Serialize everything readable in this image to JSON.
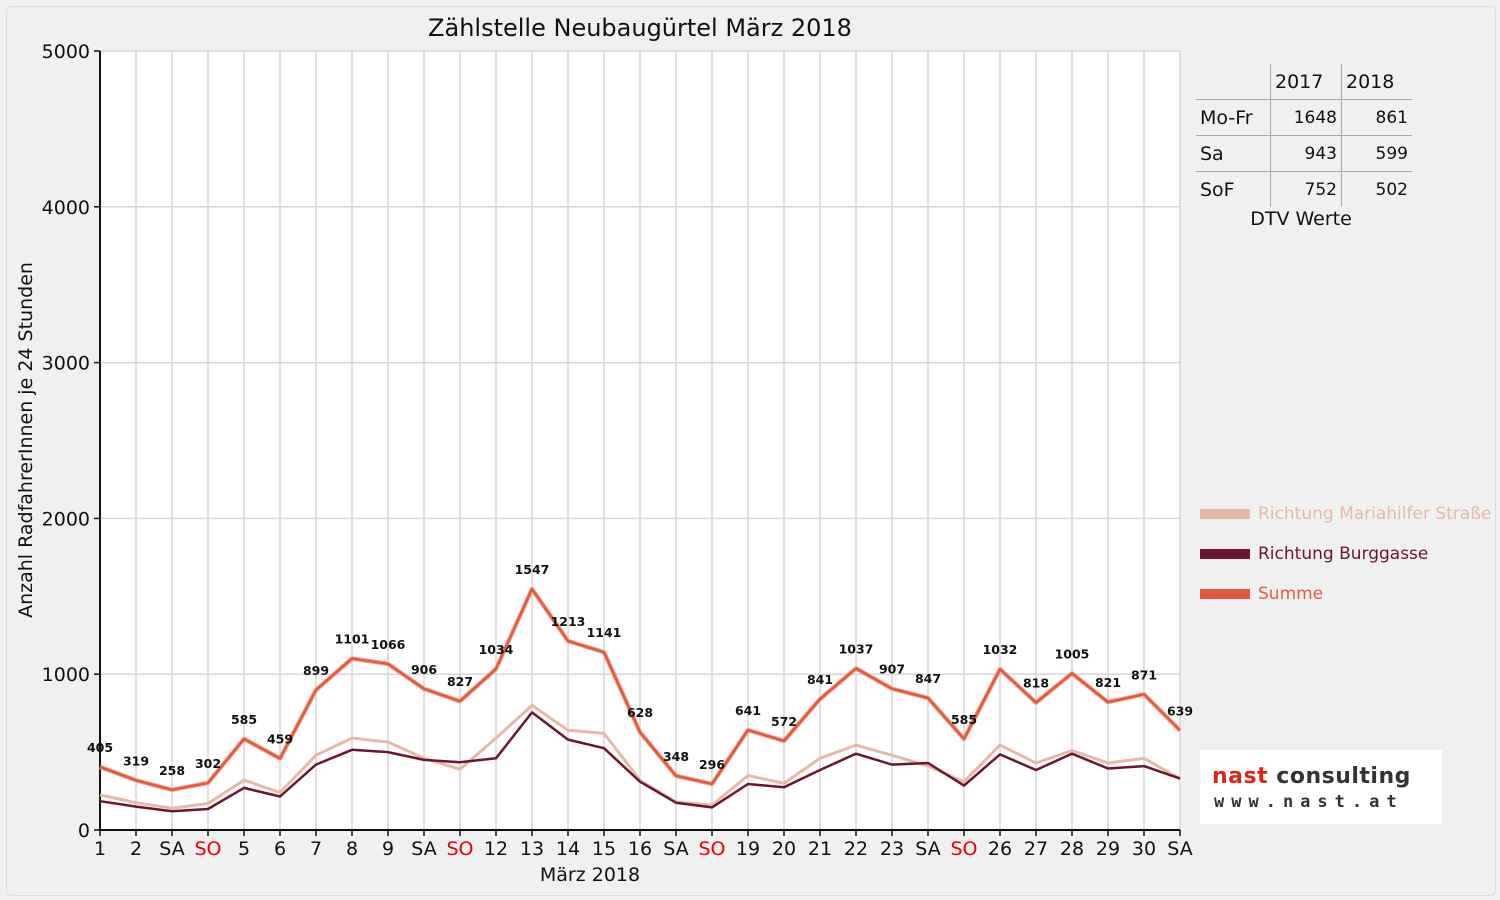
{
  "chart_data": {
    "type": "line",
    "title": "Zählstelle Neubaugürtel März 2018",
    "xlabel": "März 2018",
    "ylabel": "Anzahl RadfahrerInnen je 24 Stunden",
    "ylim": [
      0,
      5000
    ],
    "yticks": [
      0,
      1000,
      2000,
      3000,
      4000,
      5000
    ],
    "grid": true,
    "categories": [
      "1",
      "2",
      "SA",
      "SO",
      "5",
      "6",
      "7",
      "8",
      "9",
      "SA",
      "SO",
      "12",
      "13",
      "14",
      "15",
      "16",
      "SA",
      "SO",
      "19",
      "20",
      "21",
      "22",
      "23",
      "SA",
      "SO",
      "26",
      "27",
      "28",
      "29",
      "30",
      "SA"
    ],
    "sunday_indices": [
      3,
      10,
      17,
      24
    ],
    "sunday_color": "#e8000f",
    "series": [
      {
        "name": "Richtung Mariahilfer Straße",
        "color": "#e8b8a6",
        "values": [
          225,
          175,
          140,
          170,
          320,
          240,
          480,
          590,
          565,
          460,
          390,
          590,
          800,
          640,
          620,
          320,
          180,
          160,
          350,
          300,
          460,
          545,
          480,
          410,
          310,
          545,
          430,
          510,
          430,
          460,
          330
        ]
      },
      {
        "name": "Richtung Burggasse",
        "color": "#6b1530",
        "values": [
          185,
          150,
          120,
          135,
          270,
          215,
          420,
          515,
          500,
          450,
          435,
          460,
          755,
          580,
          525,
          310,
          175,
          145,
          295,
          275,
          385,
          490,
          420,
          430,
          285,
          485,
          385,
          490,
          395,
          410,
          330
        ]
      },
      {
        "name": "Summe",
        "color": "#e05a40",
        "values": [
          405,
          319,
          258,
          302,
          585,
          459,
          899,
          1101,
          1066,
          906,
          827,
          1034,
          1547,
          1213,
          1141,
          628,
          348,
          296,
          641,
          572,
          841,
          1037,
          907,
          847,
          585,
          1032,
          818,
          1005,
          821,
          871,
          639
        ],
        "data_labels": [
          "405",
          "319",
          "258",
          "302",
          "585",
          "459",
          "899",
          "1101",
          "1066",
          "906",
          "827",
          "1034",
          "1547",
          "1213",
          "1141",
          "628",
          "348",
          "296",
          "641",
          "572",
          "841",
          "1037",
          "907",
          "847",
          "585",
          "1032",
          "818",
          "1005",
          "821",
          "871",
          "639"
        ]
      }
    ],
    "legend_position": "right"
  },
  "dtv": {
    "caption": "DTV Werte",
    "columns": [
      "2017",
      "2018"
    ],
    "rows": [
      {
        "label": "Mo-Fr",
        "v2017": "1648",
        "v2018": "861"
      },
      {
        "label": "Sa",
        "v2017": "943",
        "v2018": "599"
      },
      {
        "label": "SoF",
        "v2017": "752",
        "v2018": "502"
      }
    ]
  },
  "logo": {
    "word1": "nast",
    "word2": "consulting",
    "url": "www.nast.at"
  }
}
